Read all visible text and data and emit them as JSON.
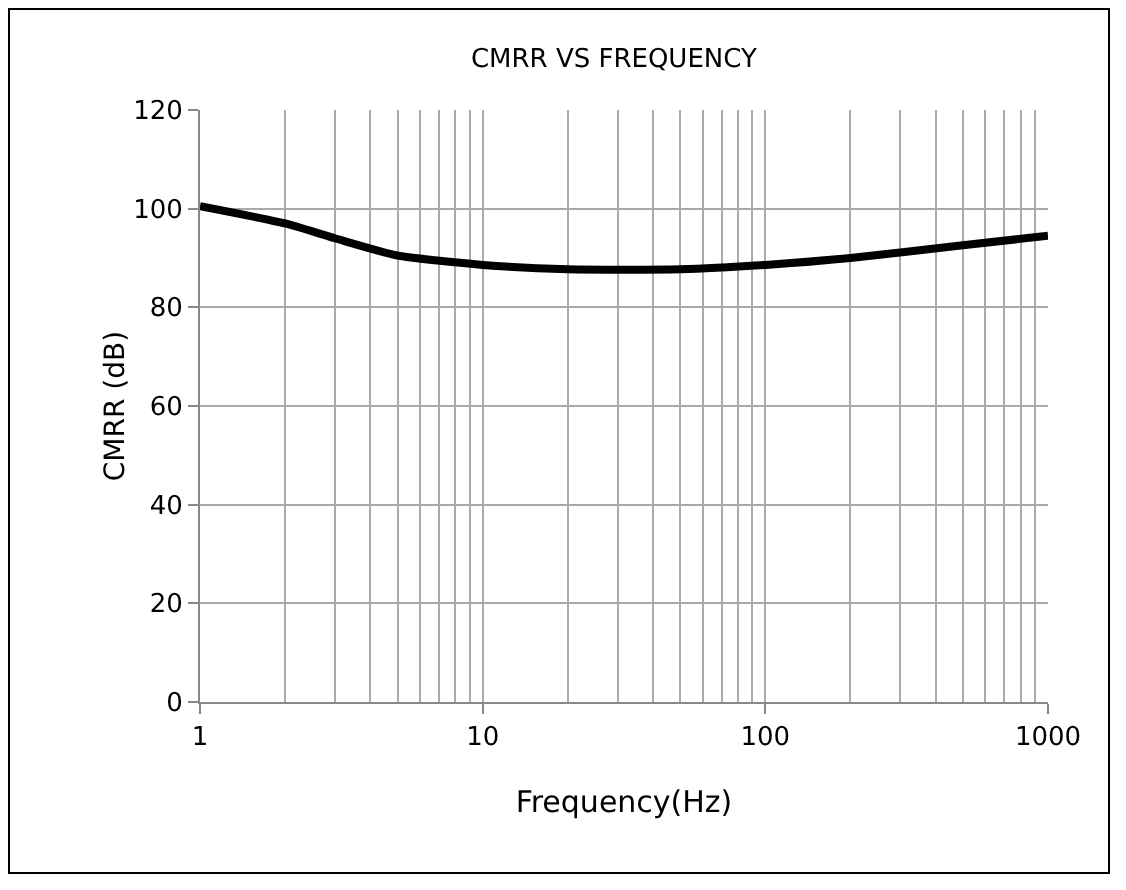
{
  "chart_data": {
    "type": "line",
    "title": "CMRR VS FREQUENCY",
    "xlabel": "Frequency(Hz)",
    "ylabel": "CMRR (dB)",
    "log": "x",
    "xlim": [
      1,
      1000
    ],
    "xticks": [
      1,
      10,
      100,
      1000
    ],
    "ylim": [
      0,
      120
    ],
    "yticks": [
      0,
      20,
      40,
      60,
      80,
      100,
      120
    ],
    "grid": true,
    "marker": "none",
    "line_style": "solid",
    "series": [
      {
        "color": "#000000",
        "x": [
          1,
          2,
          3,
          5,
          10,
          20,
          50,
          100,
          200,
          500,
          1000
        ],
        "values": [
          100.5,
          97,
          94,
          90.5,
          88.6,
          87.7,
          87.7,
          88.6,
          90,
          92.6,
          94.5
        ]
      }
    ]
  }
}
